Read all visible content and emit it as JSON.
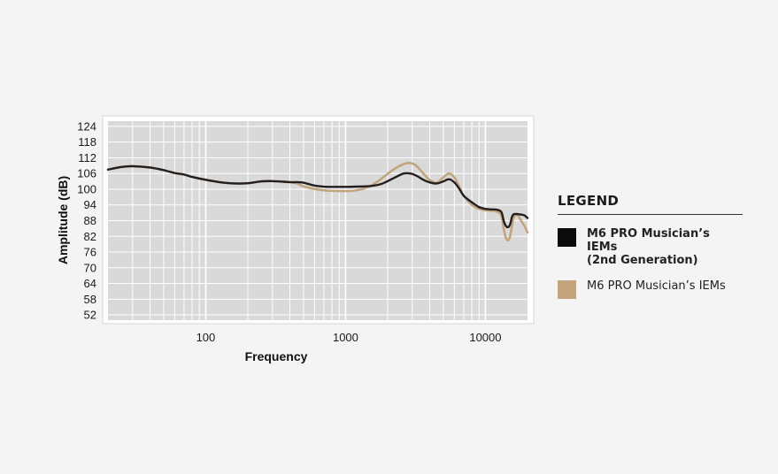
{
  "chart_data": {
    "type": "line",
    "xscale": "log",
    "xlim": [
      20,
      20000
    ],
    "ylim": [
      50,
      126
    ],
    "xticks": [
      100,
      1000,
      10000
    ],
    "xtick_labels": [
      "100",
      "1000",
      "10000"
    ],
    "yticks": [
      124,
      118,
      112,
      106,
      100,
      94,
      88,
      82,
      76,
      70,
      64,
      58,
      52
    ],
    "ytick_labels": [
      "124",
      "118",
      "112",
      "106",
      "100",
      "94",
      "88",
      "82",
      "76",
      "70",
      "64",
      "58",
      "52"
    ],
    "xlabel": "Frequency",
    "ylabel": "Amplitude (dB)",
    "grid": true,
    "legend_position": "right",
    "series": [
      {
        "name": "M6 PRO Musician’s IEMs",
        "color": "#c2a57e",
        "x": [
          20,
          25,
          30,
          40,
          50,
          60,
          70,
          80,
          100,
          130,
          160,
          200,
          250,
          300,
          400,
          450,
          500,
          600,
          700,
          800,
          1000,
          1200,
          1500,
          1800,
          2200,
          2600,
          2900,
          3200,
          3600,
          4000,
          4500,
          5000,
          5500,
          6000,
          6500,
          7000,
          8000,
          9000,
          10000,
          11000,
          12000,
          13000,
          13500,
          14000,
          14500,
          15000,
          15500,
          16000,
          17000,
          18000,
          19000,
          20000
        ],
        "y": [
          107.5,
          108.5,
          108.8,
          108.3,
          107.3,
          106.2,
          105.6,
          104.7,
          103.6,
          102.6,
          102.2,
          102.3,
          103.0,
          103.1,
          102.7,
          102.2,
          101.1,
          100.1,
          99.6,
          99.4,
          99.3,
          99.6,
          101.2,
          104.0,
          107.5,
          109.6,
          110.0,
          109.0,
          106.0,
          103.5,
          102.5,
          104.5,
          106.0,
          104.5,
          101.0,
          97.5,
          94.0,
          92.5,
          92.0,
          91.8,
          91.5,
          90.0,
          85.0,
          81.5,
          80.5,
          82.0,
          86.0,
          89.5,
          90.0,
          88.0,
          86.0,
          83.5
        ]
      },
      {
        "name": "M6 PRO Musician’s IEMs (2nd Generation)",
        "color": "#231f20",
        "x": [
          20,
          25,
          30,
          40,
          50,
          60,
          70,
          80,
          100,
          130,
          160,
          200,
          250,
          300,
          400,
          450,
          500,
          600,
          700,
          800,
          1000,
          1200,
          1500,
          1800,
          2200,
          2600,
          2900,
          3200,
          3600,
          4000,
          4500,
          5000,
          5500,
          6000,
          6500,
          7000,
          8000,
          9000,
          10000,
          11000,
          12000,
          13000,
          13500,
          14000,
          14500,
          15000,
          15500,
          16000,
          17000,
          18000,
          19000,
          20000
        ],
        "y": [
          107.5,
          108.5,
          108.8,
          108.3,
          107.3,
          106.2,
          105.6,
          104.7,
          103.6,
          102.6,
          102.2,
          102.3,
          103.0,
          103.1,
          102.7,
          102.7,
          102.5,
          101.4,
          101.0,
          100.9,
          100.9,
          101.0,
          101.2,
          102.0,
          104.2,
          106.0,
          106.0,
          105.2,
          103.6,
          102.6,
          102.2,
          103.0,
          103.8,
          102.6,
          100.2,
          97.5,
          95.0,
          93.2,
          92.5,
          92.3,
          92.2,
          91.3,
          88.0,
          86.0,
          85.5,
          86.5,
          89.5,
          90.5,
          90.5,
          90.3,
          90.0,
          89.0
        ]
      }
    ]
  },
  "legend": {
    "title": "LEGEND",
    "items": [
      {
        "line1": "M6 PRO Musician’s IEMs",
        "line2": "(2nd Generation)",
        "color": "#0b0b0b",
        "bold": true
      },
      {
        "line1": "M6 PRO Musician’s IEMs",
        "line2": "",
        "color": "#c2a57e",
        "bold": false
      }
    ]
  }
}
